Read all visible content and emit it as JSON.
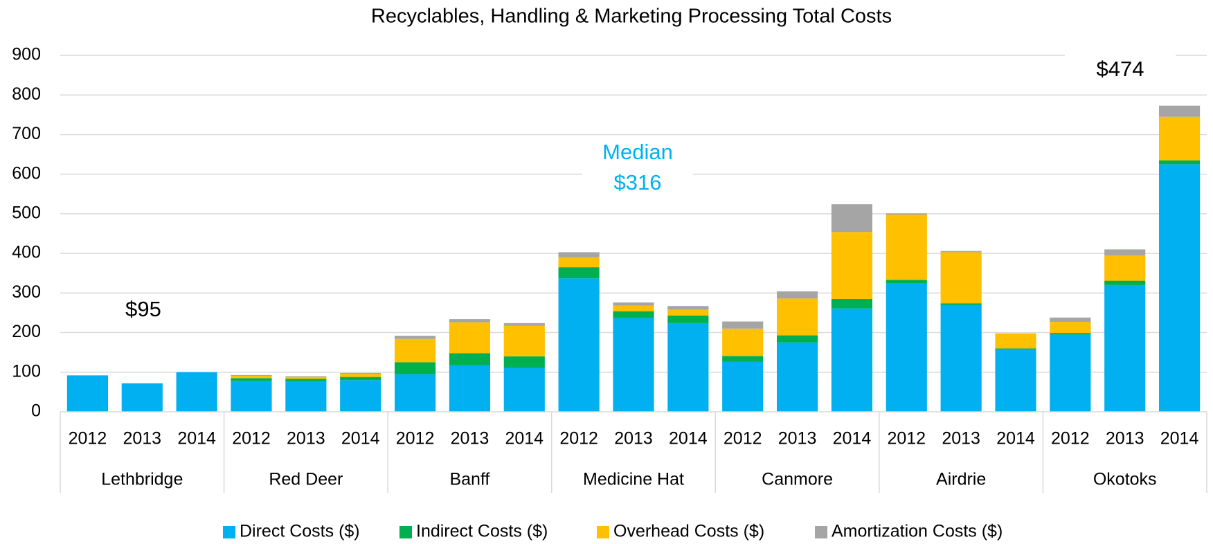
{
  "chart_data": {
    "type": "stacked_bar",
    "title": "Recyclables, Handling & Marketing Processing Total Costs",
    "groups": [
      "Lethbridge",
      "Red Deer",
      "Banff",
      "Medicine Hat",
      "Canmore",
      "Airdrie",
      "Okotoks"
    ],
    "categories": [
      "2012",
      "2013",
      "2014",
      "2012",
      "2013",
      "2014",
      "2012",
      "2013",
      "2014",
      "2012",
      "2013",
      "2014",
      "2012",
      "2013",
      "2014",
      "2012",
      "2013",
      "2014",
      "2012",
      "2013",
      "2014"
    ],
    "series": [
      {
        "name": "Direct Costs ($)",
        "color": "#00b0f0",
        "values": [
          92,
          72,
          100,
          78,
          77,
          80,
          95,
          118,
          111,
          337,
          237,
          224,
          126,
          175,
          261,
          325,
          270,
          158,
          195,
          320,
          625
        ]
      },
      {
        "name": "Indirect Costs ($)",
        "color": "#00b050",
        "values": [
          0,
          0,
          0,
          7,
          6,
          8,
          30,
          30,
          29,
          28,
          17,
          19,
          15,
          18,
          24,
          8,
          4,
          2,
          4,
          11,
          10
        ]
      },
      {
        "name": "Overhead Costs ($)",
        "color": "#ffc000",
        "values": [
          0,
          0,
          0,
          6,
          5,
          8,
          59,
          78,
          77,
          25,
          14,
          15,
          69,
          93,
          169,
          165,
          129,
          38,
          28,
          64,
          110
        ]
      },
      {
        "name": "Amortization Costs ($)",
        "color": "#a5a5a5",
        "values": [
          0,
          0,
          0,
          2,
          2,
          2,
          8,
          8,
          7,
          13,
          8,
          9,
          18,
          18,
          70,
          3,
          3,
          0,
          11,
          15,
          28
        ]
      }
    ],
    "ylim": [
      0,
      900
    ],
    "yticks": [
      0,
      100,
      200,
      300,
      400,
      500,
      600,
      700,
      800,
      900
    ],
    "grid": true,
    "legend": "bottom",
    "annotations": [
      {
        "lines": [
          "$95"
        ],
        "color": "#000000"
      },
      {
        "lines": [
          "Median",
          "$316"
        ],
        "color": "#00b0f0"
      },
      {
        "lines": [
          "$474"
        ],
        "color": "#000000"
      }
    ]
  }
}
